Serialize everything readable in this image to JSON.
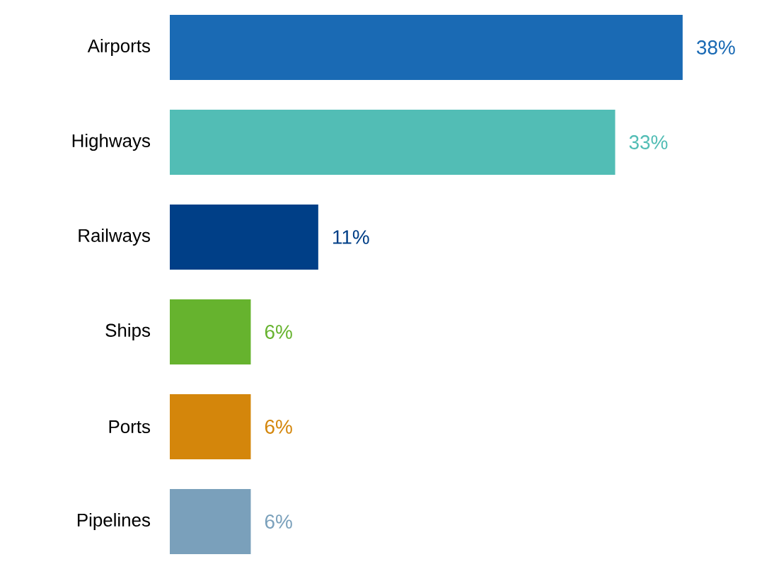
{
  "chart_data": {
    "type": "bar",
    "orientation": "horizontal",
    "categories": [
      "Airports",
      "Highways",
      "Railways",
      "Ships",
      "Ports",
      "Pipelines"
    ],
    "values": [
      38,
      33,
      11,
      6,
      6,
      6
    ],
    "colors": [
      "#1a6ab4",
      "#52bdb5",
      "#003f87",
      "#66b32e",
      "#d4860b",
      "#7aa0bb"
    ],
    "value_labels": [
      "38%",
      "33%",
      "11%",
      "6%",
      "6%",
      "6%"
    ]
  }
}
